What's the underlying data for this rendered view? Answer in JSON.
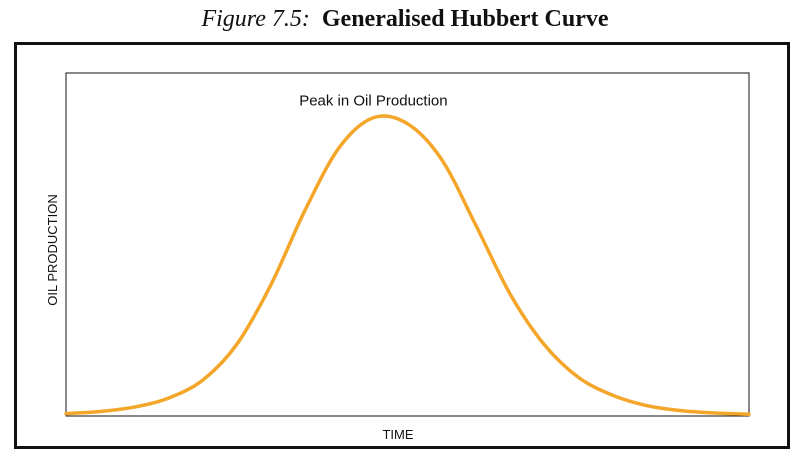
{
  "figure": {
    "label": "Figure 7.5:",
    "title": "Generalised Hubbert Curve"
  },
  "chart_data": {
    "type": "line",
    "title": "Generalised Hubbert Curve",
    "xlabel": "TIME",
    "ylabel": "OIL PRODUCTION",
    "annotation": "Peak in Oil Production",
    "x_ticks": [],
    "y_ticks": [],
    "grid": false,
    "legend": "none",
    "series": [
      {
        "color": "#f4a62a",
        "x": [
          0,
          0.05,
          0.1,
          0.15,
          0.2,
          0.25,
          0.3,
          0.35,
          0.4,
          0.45,
          0.5,
          0.55,
          0.6,
          0.65,
          0.7,
          0.75,
          0.8,
          0.85,
          0.9,
          0.95,
          1.0
        ],
        "y": [
          0.008,
          0.015,
          0.03,
          0.06,
          0.12,
          0.24,
          0.44,
          0.69,
          0.9,
          1.0,
          0.98,
          0.86,
          0.64,
          0.41,
          0.24,
          0.13,
          0.07,
          0.035,
          0.018,
          0.01,
          0.006
        ]
      }
    ],
    "xlim": [
      0,
      1
    ],
    "ylim": [
      0,
      1.15
    ]
  }
}
